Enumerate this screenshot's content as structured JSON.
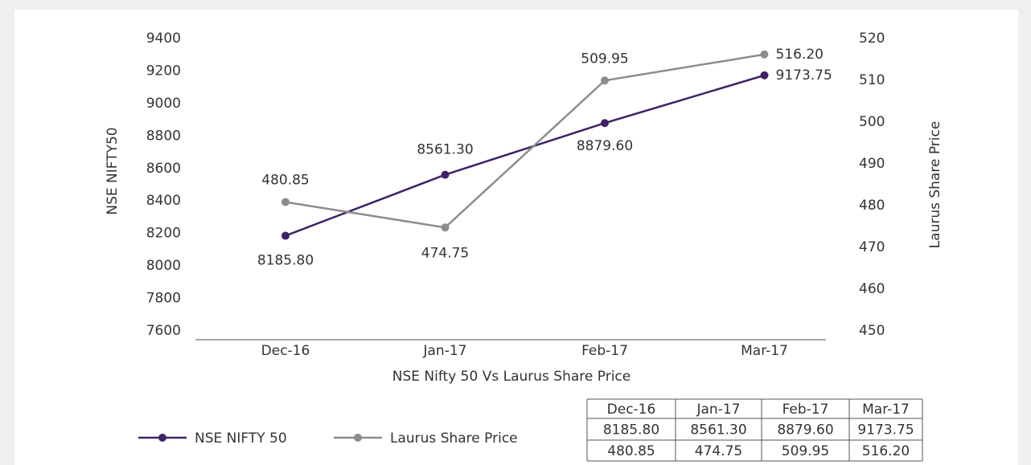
{
  "chart_data": {
    "type": "line",
    "title": "NSE Nifty 50 Vs Laurus Share Price",
    "ylabel": "NSE NIFTY50",
    "y2label": "Laurus Share Price",
    "categories": [
      "Dec-16",
      "Jan-17",
      "Feb-17",
      "Mar-17"
    ],
    "series": [
      {
        "name": "NSE NIFTY 50",
        "color": "#3e2266",
        "values": [
          8185.8,
          8561.3,
          8879.6,
          9173.75
        ],
        "value_labels": [
          "8185.80",
          "8561.30",
          "8879.60",
          "9173.75"
        ]
      },
      {
        "name": "Laurus Share Price",
        "color": "#8c8c8c",
        "axis": "y2",
        "values": [
          480.85,
          474.75,
          509.95,
          516.2
        ],
        "value_labels": [
          "480.85",
          "474.75",
          "509.95",
          "516.20"
        ]
      }
    ],
    "ylim": [
      7600,
      9400
    ],
    "yticks": [
      7600,
      7800,
      8000,
      8200,
      8400,
      8600,
      8800,
      9000,
      9200,
      9400
    ],
    "y2lim": [
      450,
      520
    ],
    "y2ticks": [
      450,
      460,
      470,
      480,
      490,
      500,
      510,
      520
    ],
    "legend": "bottom"
  },
  "table": {
    "header": [
      "Dec-16",
      "Jan-17",
      "Feb-17",
      "Mar-17"
    ],
    "rows": [
      [
        "8185.80",
        "8561.30",
        "8879.60",
        "9173.75"
      ],
      [
        "480.85",
        "474.75",
        "509.95",
        "516.20"
      ]
    ]
  }
}
